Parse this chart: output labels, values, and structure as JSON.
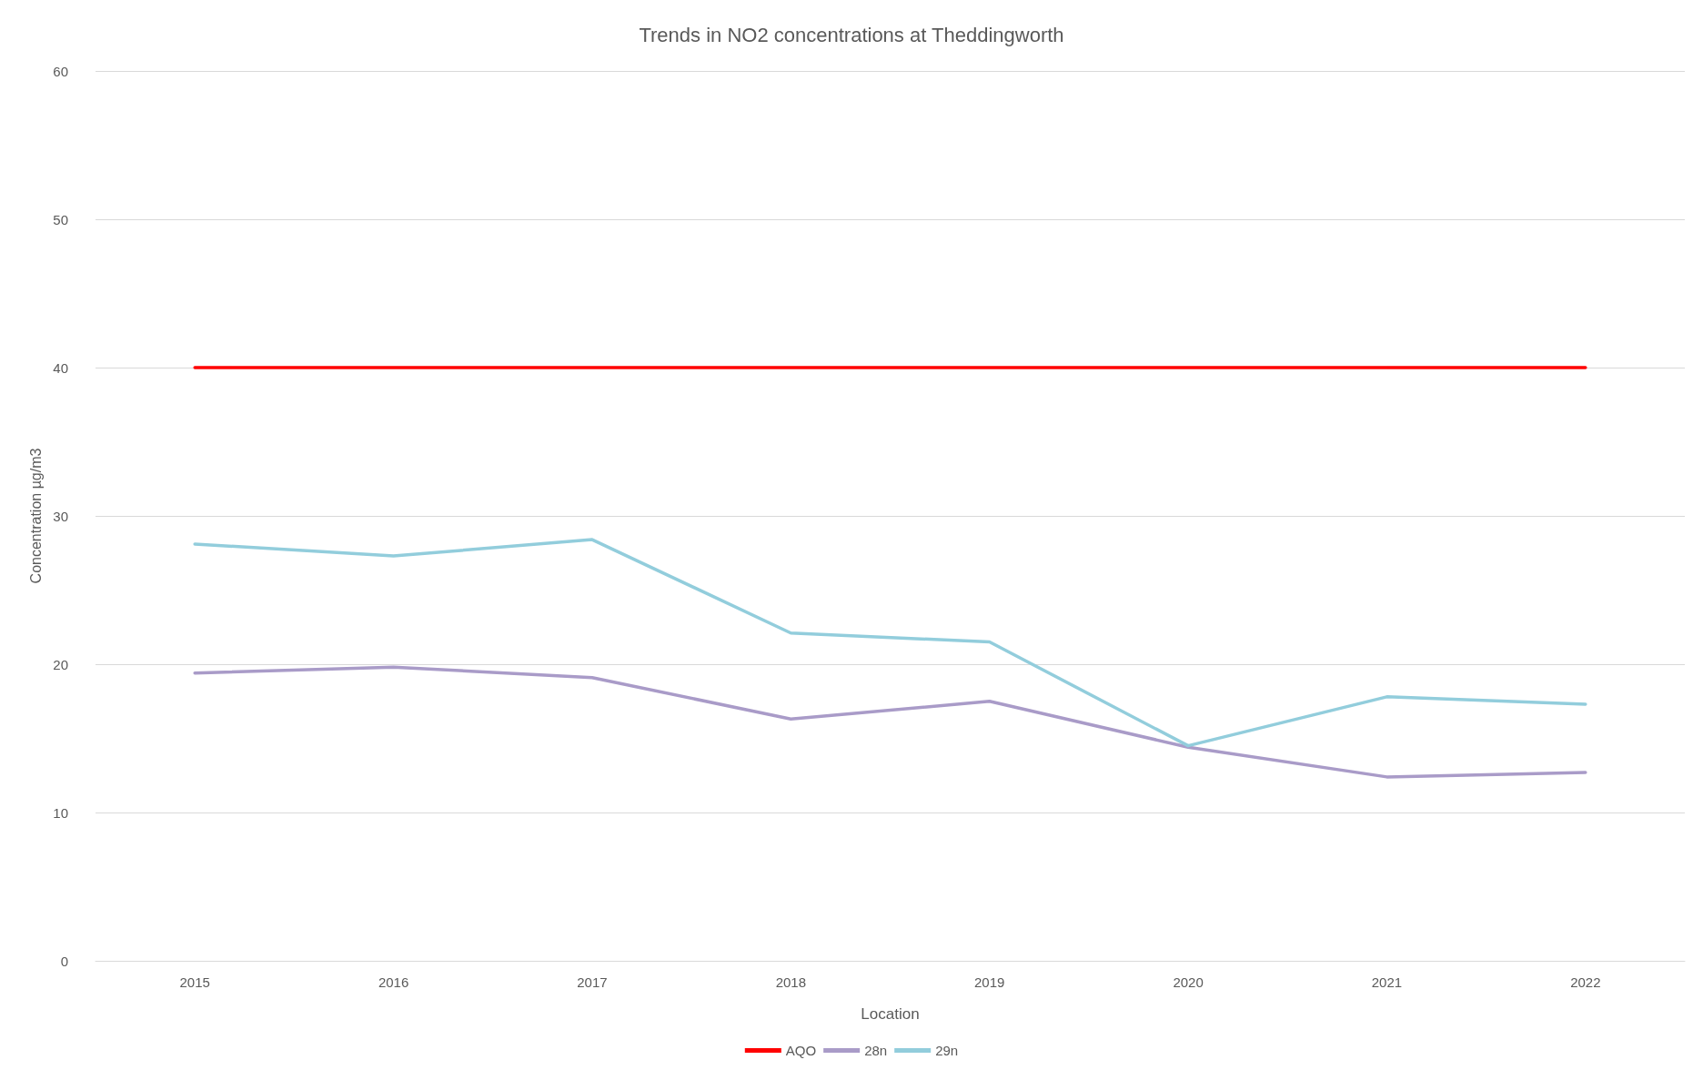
{
  "chart_data": {
    "type": "line",
    "title": "Trends in NO2 concentrations at Theddingworth",
    "xlabel": "Location",
    "ylabel": "Concentration µg/m3",
    "categories": [
      "2015",
      "2016",
      "2017",
      "2018",
      "2019",
      "2020",
      "2021",
      "2022"
    ],
    "series": [
      {
        "name": "AQO",
        "color": "#ff0000",
        "values": [
          40,
          40,
          40,
          40,
          40,
          40,
          40,
          40
        ]
      },
      {
        "name": "28n",
        "color": "#a99bc8",
        "values": [
          19.4,
          19.8,
          19.1,
          16.3,
          17.5,
          14.4,
          12.4,
          12.7
        ]
      },
      {
        "name": "29n",
        "color": "#92cddc",
        "values": [
          28.1,
          27.3,
          28.4,
          22.1,
          21.5,
          14.5,
          17.8,
          17.3
        ]
      }
    ],
    "ylim": [
      0,
      60
    ],
    "yticks": [
      0,
      10,
      20,
      30,
      40,
      50,
      60
    ],
    "grid": "y",
    "legend": "bottom"
  }
}
